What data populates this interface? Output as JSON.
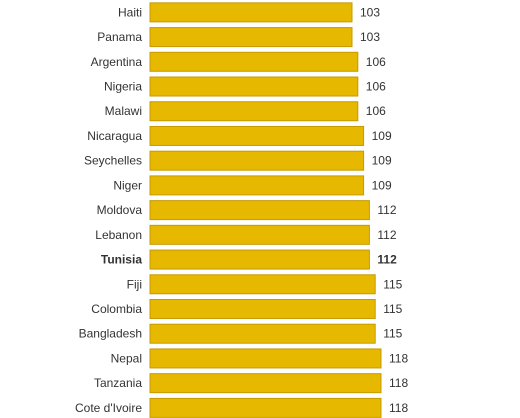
{
  "chart_data": {
    "type": "bar",
    "orientation": "horizontal",
    "categories": [
      "Haiti",
      "Panama",
      "Argentina",
      "Nigeria",
      "Malawi",
      "Nicaragua",
      "Seychelles",
      "Niger",
      "Moldova",
      "Lebanon",
      "Tunisia",
      "Fiji",
      "Colombia",
      "Bangladesh",
      "Nepal",
      "Tanzania",
      "Cote d'Ivoire"
    ],
    "values": [
      103,
      103,
      106,
      106,
      106,
      109,
      109,
      109,
      112,
      112,
      112,
      115,
      115,
      115,
      118,
      118,
      118
    ],
    "highlight": "Tunisia",
    "bar_color": "#e6b800",
    "bar_border_color": "#c89a00",
    "title": "",
    "xlabel": "",
    "ylabel": "",
    "legend": "none",
    "grid": false
  }
}
